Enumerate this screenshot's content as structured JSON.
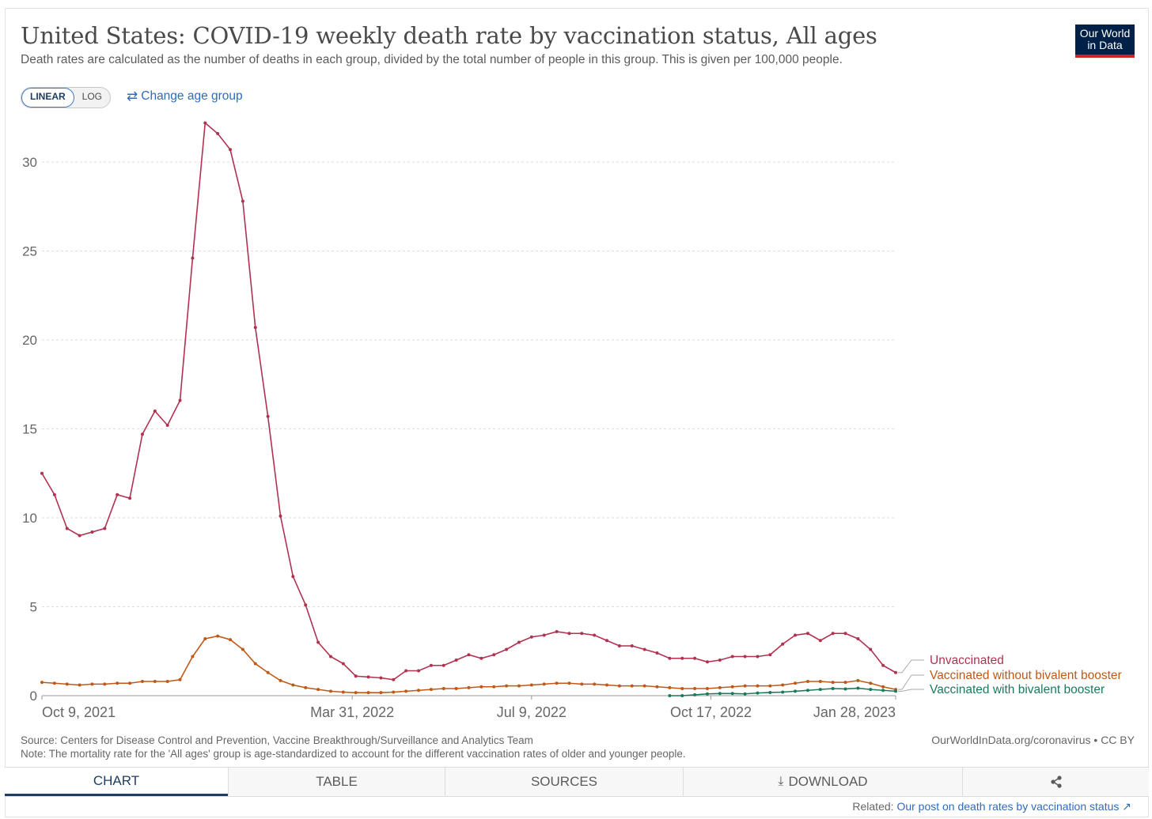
{
  "header": {
    "title": "United States: COVID-19 weekly death rate by vaccination status, All ages",
    "subtitle": "Death rates are calculated as the number of deaths in each group, divided by the total number of people in this group. This is given per 100,000 people.",
    "logo_line1": "Our World",
    "logo_line2": "in Data"
  },
  "controls": {
    "linear_label": "LINEAR",
    "log_label": "LOG",
    "change_age_label": "Change age group",
    "active_scale": "linear"
  },
  "colors": {
    "unvaccinated": "#b13250",
    "vaccinated_without": "#c05917",
    "vaccinated_with": "#1c7a5c",
    "grid": "#dddddd",
    "axis_text": "#666666"
  },
  "chart_data": {
    "type": "line",
    "x_type": "date",
    "ylim": [
      0,
      32
    ],
    "y_ticks": [
      0,
      5,
      10,
      15,
      20,
      25,
      30
    ],
    "x_ticks": [
      "Oct 9, 2021",
      "Mar 31, 2022",
      "Jul 9, 2022",
      "Oct 17, 2022",
      "Jan 28, 2023"
    ],
    "x_start": "2021-10-09",
    "x_end": "2023-01-28",
    "legend_position": "right-end-labels",
    "grid": "horizontal-dashed",
    "series": [
      {
        "name": "Unvaccinated",
        "color_key": "unvaccinated",
        "x": [
          "2021-10-09",
          "2021-10-16",
          "2021-10-23",
          "2021-10-30",
          "2021-11-06",
          "2021-11-13",
          "2021-11-20",
          "2021-11-27",
          "2021-12-04",
          "2021-12-11",
          "2021-12-18",
          "2021-12-25",
          "2022-01-01",
          "2022-01-08",
          "2022-01-15",
          "2022-01-22",
          "2022-01-29",
          "2022-02-05",
          "2022-02-12",
          "2022-02-19",
          "2022-02-26",
          "2022-03-05",
          "2022-03-12",
          "2022-03-19",
          "2022-03-26",
          "2022-04-02",
          "2022-04-09",
          "2022-04-16",
          "2022-04-23",
          "2022-04-30",
          "2022-05-07",
          "2022-05-14",
          "2022-05-21",
          "2022-05-28",
          "2022-06-04",
          "2022-06-11",
          "2022-06-18",
          "2022-06-25",
          "2022-07-02",
          "2022-07-09",
          "2022-07-16",
          "2022-07-23",
          "2022-07-30",
          "2022-08-06",
          "2022-08-13",
          "2022-08-20",
          "2022-08-27",
          "2022-09-03",
          "2022-09-10",
          "2022-09-17",
          "2022-09-24",
          "2022-10-01",
          "2022-10-08",
          "2022-10-15",
          "2022-10-22",
          "2022-10-29",
          "2022-11-05",
          "2022-11-12",
          "2022-11-19",
          "2022-11-26",
          "2022-12-03",
          "2022-12-10",
          "2022-12-17",
          "2022-12-24",
          "2022-12-31",
          "2023-01-07",
          "2023-01-14",
          "2023-01-21",
          "2023-01-28"
        ],
        "values": [
          12.5,
          11.3,
          9.4,
          9.0,
          9.2,
          9.4,
          11.3,
          11.1,
          14.7,
          16.0,
          15.2,
          16.6,
          24.6,
          32.2,
          31.6,
          30.7,
          27.8,
          20.7,
          15.7,
          10.1,
          6.7,
          5.1,
          3.0,
          2.2,
          1.8,
          1.1,
          1.05,
          1.0,
          0.9,
          1.4,
          1.4,
          1.7,
          1.7,
          2.0,
          2.3,
          2.1,
          2.3,
          2.6,
          3.0,
          3.3,
          3.4,
          3.6,
          3.5,
          3.5,
          3.4,
          3.1,
          2.8,
          2.8,
          2.6,
          2.4,
          2.1,
          2.1,
          2.1,
          1.9,
          2.0,
          2.2,
          2.2,
          2.2,
          2.3,
          2.9,
          3.4,
          3.5,
          3.1,
          3.5,
          3.5,
          3.2,
          2.6,
          1.7,
          1.3
        ]
      },
      {
        "name": "Vaccinated without bivalent booster",
        "color_key": "vaccinated_without",
        "x": [
          "2021-10-09",
          "2021-10-16",
          "2021-10-23",
          "2021-10-30",
          "2021-11-06",
          "2021-11-13",
          "2021-11-20",
          "2021-11-27",
          "2021-12-04",
          "2021-12-11",
          "2021-12-18",
          "2021-12-25",
          "2022-01-01",
          "2022-01-08",
          "2022-01-15",
          "2022-01-22",
          "2022-01-29",
          "2022-02-05",
          "2022-02-12",
          "2022-02-19",
          "2022-02-26",
          "2022-03-05",
          "2022-03-12",
          "2022-03-19",
          "2022-03-26",
          "2022-04-02",
          "2022-04-09",
          "2022-04-16",
          "2022-04-23",
          "2022-04-30",
          "2022-05-07",
          "2022-05-14",
          "2022-05-21",
          "2022-05-28",
          "2022-06-04",
          "2022-06-11",
          "2022-06-18",
          "2022-06-25",
          "2022-07-02",
          "2022-07-09",
          "2022-07-16",
          "2022-07-23",
          "2022-07-30",
          "2022-08-06",
          "2022-08-13",
          "2022-08-20",
          "2022-08-27",
          "2022-09-03",
          "2022-09-10",
          "2022-09-17",
          "2022-09-24",
          "2022-10-01",
          "2022-10-08",
          "2022-10-15",
          "2022-10-22",
          "2022-10-29",
          "2022-11-05",
          "2022-11-12",
          "2022-11-19",
          "2022-11-26",
          "2022-12-03",
          "2022-12-10",
          "2022-12-17",
          "2022-12-24",
          "2022-12-31",
          "2023-01-07",
          "2023-01-14",
          "2023-01-21",
          "2023-01-28"
        ],
        "values": [
          0.75,
          0.7,
          0.65,
          0.6,
          0.65,
          0.65,
          0.7,
          0.7,
          0.8,
          0.8,
          0.8,
          0.9,
          2.2,
          3.2,
          3.35,
          3.15,
          2.6,
          1.8,
          1.3,
          0.85,
          0.6,
          0.45,
          0.35,
          0.25,
          0.2,
          0.17,
          0.17,
          0.17,
          0.2,
          0.25,
          0.3,
          0.35,
          0.4,
          0.4,
          0.45,
          0.5,
          0.5,
          0.55,
          0.55,
          0.6,
          0.65,
          0.7,
          0.7,
          0.65,
          0.65,
          0.6,
          0.55,
          0.55,
          0.55,
          0.5,
          0.45,
          0.4,
          0.4,
          0.4,
          0.45,
          0.5,
          0.55,
          0.55,
          0.55,
          0.6,
          0.7,
          0.8,
          0.8,
          0.75,
          0.75,
          0.85,
          0.7,
          0.5,
          0.35
        ]
      },
      {
        "name": "Vaccinated with bivalent booster",
        "color_key": "vaccinated_with",
        "x": [
          "2022-09-24",
          "2022-10-01",
          "2022-10-08",
          "2022-10-15",
          "2022-10-22",
          "2022-10-29",
          "2022-11-05",
          "2022-11-12",
          "2022-11-19",
          "2022-11-26",
          "2022-12-03",
          "2022-12-10",
          "2022-12-17",
          "2022-12-24",
          "2022-12-31",
          "2023-01-07",
          "2023-01-14",
          "2023-01-21",
          "2023-01-28"
        ],
        "values": [
          0.0,
          0.0,
          0.05,
          0.1,
          0.12,
          0.12,
          0.1,
          0.15,
          0.18,
          0.2,
          0.25,
          0.3,
          0.35,
          0.4,
          0.38,
          0.42,
          0.35,
          0.3,
          0.25
        ]
      }
    ]
  },
  "footer": {
    "source": "Source: Centers for Disease Control and Prevention, Vaccine Breakthrough/Surveillance and Analytics Team",
    "note": "Note: The mortality rate for the 'All ages' group is age-standardized to account for the different vaccination rates of older and younger people.",
    "credit": "OurWorldInData.org/coronavirus • CC BY"
  },
  "tabs": [
    {
      "label": "CHART",
      "icon": ""
    },
    {
      "label": "TABLE",
      "icon": ""
    },
    {
      "label": "SOURCES",
      "icon": ""
    },
    {
      "label": "DOWNLOAD",
      "icon": "download-icon"
    },
    {
      "label": "",
      "icon": "share-icon"
    }
  ],
  "related": {
    "prefix": "Related:",
    "link_text": "Our post on death rates by vaccination status"
  }
}
